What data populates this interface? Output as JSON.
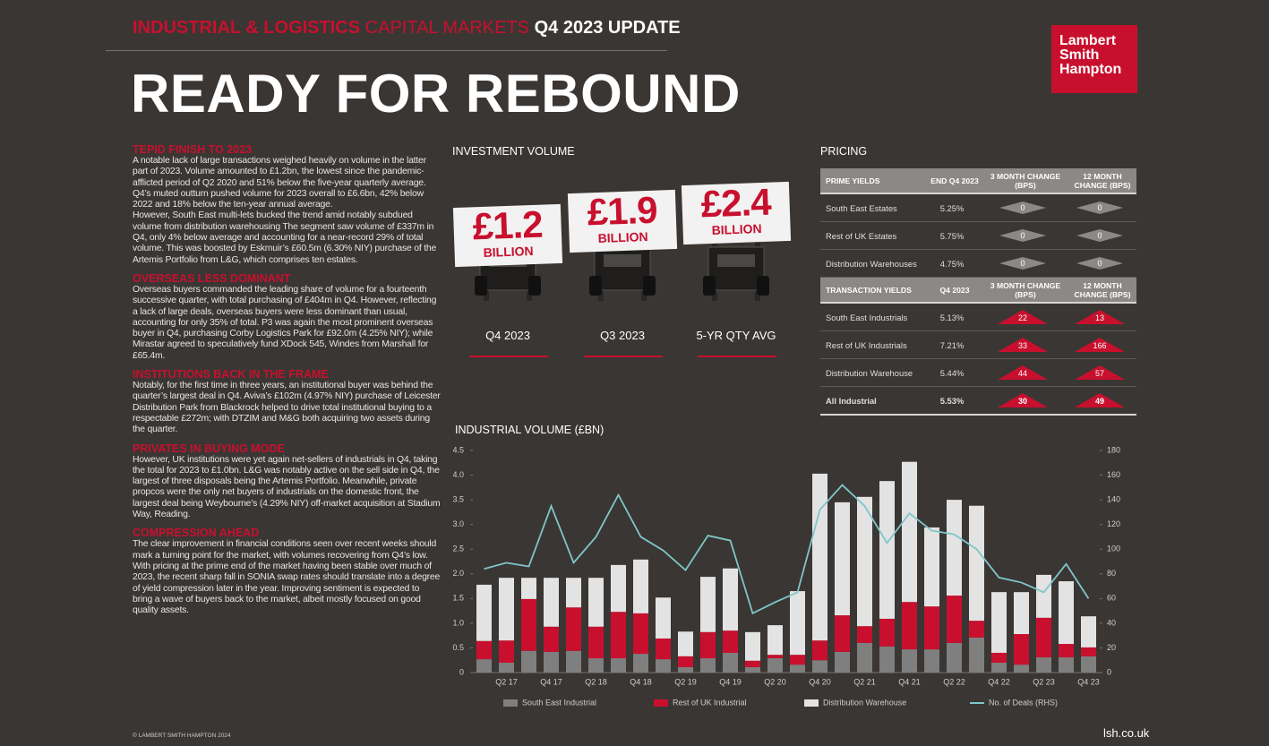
{
  "header": {
    "series": "INDUSTRIAL & LOGISTICS",
    "subtitle": "CAPITAL MARKETS",
    "edition": "Q4 2023 UPDATE",
    "headline": "READY FOR REBOUND",
    "logo": [
      "Lambert",
      "Smith",
      "Hampton"
    ]
  },
  "sections": [
    {
      "heading": "TEPID FINISH TO 2023",
      "paragraphs": [
        "A notable lack of large transactions weighed heavily on volume in the latter part of 2023. Volume amounted to £1.2bn, the lowest since the pandemic-afflicted period of Q2 2020 and 51% below the five-year quarterly average. Q4’s muted outturn pushed volume for 2023 overall to £6.6bn, 42% below 2022 and 18% below the ten-year annual average.",
        "However, South East multi-lets bucked the trend amid notably subdued volume from distribution warehousing The segment saw volume of £337m in Q4, only 4% below average and accounting for a near-record 29% of total volume. This was boosted by Eskmuir’s £60.5m (6.30% NIY) purchase of the Artemis Portfolio from L&G, which comprises ten estates."
      ]
    },
    {
      "heading": "OVERSEAS LESS DOMINANT",
      "paragraphs": [
        "Overseas buyers commanded the leading share of volume for a fourteenth successive quarter, with total purchasing of £404m in Q4. However, reflecting a lack of large deals, overseas buyers were less dominant than usual, accounting for only 35% of total. P3 was again the most prominent overseas buyer in Q4, purchasing Corby Logistics Park for £92.0m (4.25% NIY); while Mirastar agreed to speculatively fund XDock 545, Windes from Marshall for £65.4m."
      ]
    },
    {
      "heading": "INSTITUTIONS BACK IN THE FRAME",
      "paragraphs": [
        "Notably, for the first time in three years, an institutional buyer was behind the quarter’s largest deal in Q4. Aviva’s £102m (4.97% NIY) purchase of Leicester Distribution Park from Blackrock helped to drive total institutional buying to a respectable £272m; with DTZIM and M&G both acquiring two assets during the quarter."
      ]
    },
    {
      "heading": "PRIVATES IN BUYING MODE",
      "paragraphs": [
        "However, UK institutions were yet again net-sellers of industrials in Q4, taking the total for 2023 to £1.0bn. L&G was notably active on the sell side in Q4, the largest of three disposals being the Artemis Portfolio. Meanwhile, private propcos were the only net buyers of industrials on the domestic front, the largest deal being Weybourne’s (4.29% NIY) off-market acquisition at Stadium Way, Reading."
      ]
    },
    {
      "heading": "COMPRESSION AHEAD",
      "paragraphs": [
        "The clear improvement in financial conditions seen over recent weeks should mark a turning point for the market, with volumes recovering from Q4’s low. With pricing at the prime end of the market having been stable over much of 2023, the recent sharp fall in SONIA swap rates should translate into a degree of yield compression later in the year. Improving sentiment is expected to bring a wave of buyers back to the market, albeit mostly focused on good quality assets."
      ]
    }
  ],
  "investment_volume": {
    "title": "INVESTMENT VOLUME",
    "cards": [
      {
        "amount": "£1.2",
        "unit": "BILLION",
        "label": "Q4 2023"
      },
      {
        "amount": "£1.9",
        "unit": "BILLION",
        "label": "Q3 2023"
      },
      {
        "amount": "£2.4",
        "unit": "BILLION",
        "label": "5-YR QTY AVG"
      }
    ]
  },
  "pricing": {
    "title": "PRICING",
    "groups": [
      {
        "header": [
          "PRIME YIELDS",
          "END Q4 2023",
          "3 MONTH CHANGE (BPS)",
          "12 MONTH CHANGE (BPS)"
        ],
        "rows": [
          {
            "name": "South East Estates",
            "yield": "5.25%",
            "change_3m": 0,
            "change_12m": 0
          },
          {
            "name": "Rest of UK Estates",
            "yield": "5.75%",
            "change_3m": 0,
            "change_12m": 0
          },
          {
            "name": "Distribution Warehouses",
            "yield": "4.75%",
            "change_3m": 0,
            "change_12m": 0
          }
        ]
      },
      {
        "header": [
          "TRANSACTION YIELDS",
          "Q4 2023",
          "3 MONTH CHANGE (BPS)",
          "12 MONTH CHANGE (BPS)"
        ],
        "rows": [
          {
            "name": "South East Industrials",
            "yield": "5.13%",
            "change_3m": 22,
            "change_12m": 13
          },
          {
            "name": "Rest of UK Industrials",
            "yield": "7.21%",
            "change_3m": 33,
            "change_12m": 166
          },
          {
            "name": "Distribution Warehouse",
            "yield": "5.44%",
            "change_3m": 44,
            "change_12m": 57
          },
          {
            "name": "All Industrial",
            "yield": "5.53%",
            "change_3m": 30,
            "change_12m": 49
          }
        ]
      }
    ]
  },
  "chart_data": {
    "type": "bar",
    "stacked": true,
    "title": "INDUSTRIAL VOLUME (£BN)",
    "categories": [
      null,
      "Q2 17",
      null,
      "Q4 17",
      null,
      "Q2 18",
      null,
      "Q4 18",
      null,
      "Q2 19",
      null,
      "Q4 19",
      null,
      "Q2 20",
      null,
      "Q4 20",
      null,
      "Q2 21",
      null,
      "Q4 21",
      null,
      "Q2 22",
      null,
      "Q4 22",
      null,
      "Q2 23",
      null,
      "Q4 23"
    ],
    "series": [
      {
        "name": "South East Industrial",
        "color": "#7f7f7f",
        "values": [
          0.27,
          0.2,
          0.44,
          0.42,
          0.44,
          0.29,
          0.29,
          0.38,
          0.27,
          0.11,
          0.29,
          0.4,
          0.11,
          0.29,
          0.16,
          0.25,
          0.42,
          0.6,
          0.53,
          0.47,
          0.47,
          0.6,
          0.71,
          0.2,
          0.16,
          0.31,
          0.31,
          0.33
        ]
      },
      {
        "name": "Rest of UK Industrial",
        "color": "#c8102e",
        "values": [
          0.37,
          0.45,
          1.05,
          0.51,
          0.88,
          0.64,
          0.94,
          0.82,
          0.42,
          0.22,
          0.53,
          0.45,
          0.13,
          0.07,
          0.2,
          0.4,
          0.74,
          0.34,
          0.56,
          0.96,
          0.87,
          0.96,
          0.34,
          0.2,
          0.62,
          0.8,
          0.27,
          0.18
        ]
      },
      {
        "name": "Distribution Warehouse",
        "color": "#e3e3e3",
        "values": [
          1.14,
          1.27,
          0.43,
          0.99,
          0.6,
          0.99,
          0.95,
          1.09,
          0.83,
          0.5,
          1.12,
          1.26,
          0.58,
          0.6,
          1.29,
          3.38,
          2.29,
          2.62,
          2.79,
          2.84,
          1.6,
          1.94,
          2.33,
          1.23,
          0.85,
          0.87,
          1.27,
          0.63
        ]
      },
      {
        "name": "No. of Deals (RHS)",
        "type": "line",
        "axis": "y2",
        "color": "#7fc6c9",
        "values": [
          84,
          89,
          86,
          135,
          89,
          110,
          144,
          110,
          99,
          83,
          111,
          107,
          48,
          57,
          65,
          132,
          152,
          135,
          105,
          129,
          115,
          112,
          100,
          77,
          73,
          65,
          88,
          60
        ]
      }
    ],
    "ylim": [
      0,
      4.5
    ],
    "yticks": [
      0,
      0.5,
      {
        "value": 1,
        "label": "1.0"
      },
      1.5,
      {
        "value": 2,
        "label": "2.0"
      },
      2.5,
      {
        "value": 3,
        "label": "3.0"
      },
      3.5,
      {
        "value": 4,
        "label": "4.0"
      },
      4.5
    ],
    "y2lim": [
      0,
      180
    ],
    "y2ticks": [
      0,
      20,
      40,
      60,
      80,
      100,
      120,
      140,
      160,
      180
    ]
  },
  "footer": {
    "copyright": "© LAMBERT SMITH HAMPTON 2024",
    "url": "lsh.co.uk"
  }
}
